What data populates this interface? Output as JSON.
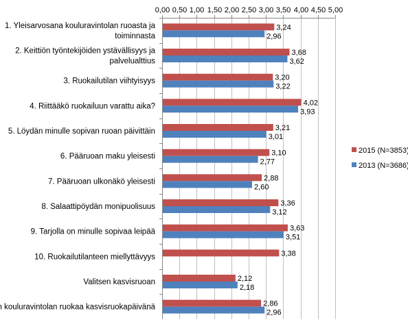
{
  "chart_data": {
    "type": "bar",
    "orientation": "horizontal",
    "xlim": [
      0,
      5
    ],
    "ticks": [
      "0,00",
      "0,50",
      "1,00",
      "1,50",
      "2,00",
      "2,50",
      "3,00",
      "3,50",
      "4,00",
      "4,50",
      "5,00"
    ],
    "tick_values": [
      0,
      0.5,
      1,
      1.5,
      2,
      2.5,
      3,
      3.5,
      4,
      4.5,
      5
    ],
    "grid": true,
    "legend_position": "right",
    "categories": [
      [
        "1. Yleisarvosana kouluravintolan ruoasta ja",
        "toiminnasta"
      ],
      [
        "2. Keittiön työntekijöiden ystävällisyys ja",
        "palvelualttius"
      ],
      [
        "3. Ruokailutilan viihtyisyys"
      ],
      [
        "4. Riittääkö ruokailuun varattu aika?"
      ],
      [
        "5. Löydän minulle sopivan ruoan päivittäin"
      ],
      [
        "6. Pääruoan maku yleisesti"
      ],
      [
        "7. Pääruoan ulkonäkö yleisesti"
      ],
      [
        "8. Salaattipöydän monipuolisuus"
      ],
      [
        "9. Tarjolla on minulle sopivaa leipää"
      ],
      [
        "10. Ruokailutilanteen miellyttävyys"
      ],
      [
        "Valitsen kasvisruoan"
      ],
      [
        "Syön kouluravintolan ruokaa kasvisruokapäivänä"
      ]
    ],
    "series": [
      {
        "name": "2015 (N=3853)",
        "color": "#c0504d",
        "values": [
          3.24,
          3.68,
          3.2,
          4.02,
          3.21,
          3.1,
          2.88,
          3.36,
          3.63,
          3.38,
          2.12,
          2.86
        ],
        "labels": [
          "3,24",
          "3,68",
          "3,20",
          "4,02",
          "3,21",
          "3,10",
          "2,88",
          "3,36",
          "3,63",
          "3,38",
          "2,12",
          "2,86"
        ]
      },
      {
        "name": "2013 (N=3686)",
        "color": "#4f81bd",
        "values": [
          2.96,
          3.62,
          3.22,
          3.93,
          3.01,
          2.77,
          2.6,
          3.12,
          3.51,
          null,
          2.18,
          2.96
        ],
        "labels": [
          "2,96",
          "3,62",
          "3,22",
          "3,93",
          "3,01",
          "2,77",
          "2,60",
          "3,12",
          "3,51",
          null,
          "2,18",
          "2,96"
        ]
      }
    ]
  }
}
